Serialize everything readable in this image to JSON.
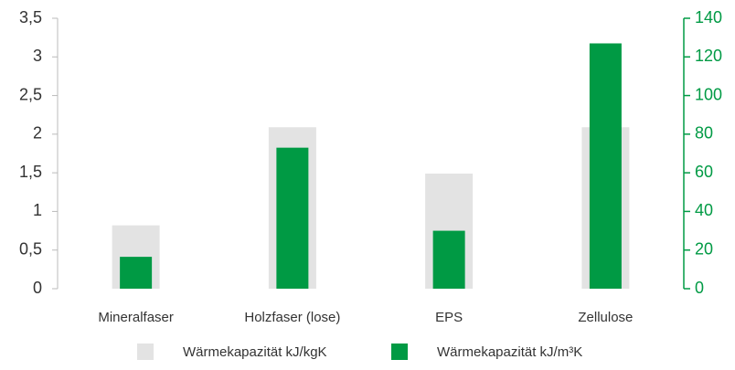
{
  "chart_data": {
    "type": "bar",
    "categories": [
      "Mineralfaser",
      "Holzfaser (lose)",
      "EPS",
      "Zellulose"
    ],
    "series": [
      {
        "name": "Wärmekapazität kJ/kgK",
        "color": "#e3e3e3",
        "values": [
          0.82,
          2.09,
          1.49,
          2.09
        ]
      },
      {
        "name": "Wärmekapazität kJ/m³K",
        "color": "#009a44",
        "axis": "y2",
        "values": [
          16.5,
          73,
          30,
          127
        ]
      }
    ],
    "ylim": [
      0,
      3.5
    ],
    "yticks": [
      0,
      {
        "value": 0.5,
        "label": "0,5"
      },
      1,
      {
        "value": 1.5,
        "label": "1,5"
      },
      2,
      {
        "value": 2.5,
        "label": "2,5"
      },
      3,
      {
        "value": 3.5,
        "label": "3,5"
      }
    ],
    "y2lim": [
      0,
      140
    ],
    "y2ticks": [
      0,
      20,
      40,
      60,
      80,
      100,
      120,
      140
    ],
    "legend": "bottom"
  }
}
